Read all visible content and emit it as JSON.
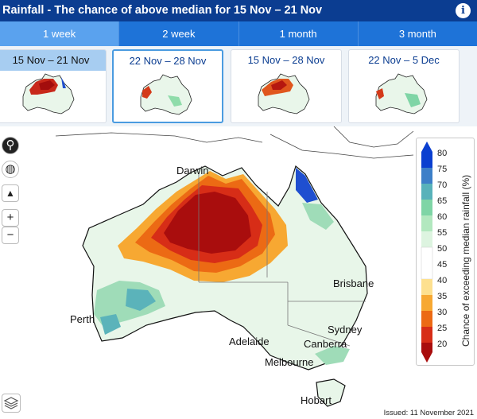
{
  "header": {
    "title": "Rainfall - The chance of above median for 15 Nov – 21 Nov",
    "info_label": "i"
  },
  "tabs": [
    {
      "label": "1 week",
      "active": true
    },
    {
      "label": "2 week",
      "active": false
    },
    {
      "label": "1 month",
      "active": false
    },
    {
      "label": "3 month",
      "active": false
    }
  ],
  "periods": [
    {
      "label": "15 Nov – 21 Nov"
    },
    {
      "label": "22 Nov – 28 Nov"
    },
    {
      "label": "15 Nov – 28 Nov"
    },
    {
      "label": "22 Nov – 5 Dec"
    }
  ],
  "map_controls": {
    "zoom_in": "+",
    "zoom_out": "−"
  },
  "cities": {
    "darwin": "Darwin",
    "brisbane": "Brisbane",
    "perth": "Perth",
    "sydney": "Sydney",
    "adelaide": "Adelaide",
    "canberra": "Canberra",
    "melbourne": "Melbourne",
    "hobart": "Hobart"
  },
  "legend": {
    "title": "Chance of exceeding median rainfall (%)",
    "ticks": [
      "80",
      "75",
      "70",
      "65",
      "60",
      "55",
      "50",
      "45",
      "40",
      "35",
      "30",
      "25",
      "20"
    ],
    "colors": [
      "#0a3fd0",
      "#3d7fc8",
      "#58b2ba",
      "#7fd5a6",
      "#b2e8bf",
      "#ddf4e0",
      "#ffffff",
      "#ffffff",
      "#fde08f",
      "#f7a832",
      "#ec6a14",
      "#d72d17",
      "#a90d0d"
    ]
  },
  "issued": "Issued: 11 November 2021"
}
